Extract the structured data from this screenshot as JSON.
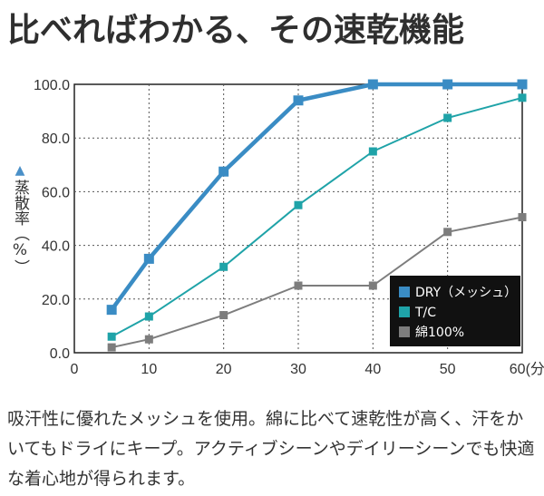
{
  "title": "比べればわかる、その速乾機能",
  "description": "吸汗性に優れたメッシュを使用。綿に比べて速乾性が高く、汗をかいてもドライにキープ。アクティブシーンやデイリーシーンでも快適な着心地が得られます。",
  "chart_data": {
    "type": "line",
    "title": "",
    "ylabel": "蒸散率（%）",
    "ylabel_marker": "▲",
    "xlabel": "",
    "xlim": [
      0,
      60
    ],
    "ylim": [
      0,
      100
    ],
    "x_ticks": [
      "0",
      "10",
      "20",
      "30",
      "40",
      "50",
      "60(分)"
    ],
    "y_ticks": [
      "0.0",
      "20.0",
      "40.0",
      "60.0",
      "80.0",
      "100.0"
    ],
    "grid": true,
    "legend_position": "bottom-right",
    "x": [
      5,
      10,
      20,
      30,
      40,
      50,
      60
    ],
    "series": [
      {
        "name": "DRY（メッシュ）",
        "color": "#3a8cc4",
        "values": [
          16,
          35,
          67.5,
          94,
          100,
          100,
          100
        ]
      },
      {
        "name": "T/C",
        "color": "#1fa3a8",
        "values": [
          6,
          13.5,
          32,
          55,
          75,
          87.5,
          95
        ]
      },
      {
        "name": "綿100%",
        "color": "#7d7d7d",
        "values": [
          2,
          5,
          14,
          25,
          25,
          45,
          50.5
        ]
      }
    ]
  }
}
